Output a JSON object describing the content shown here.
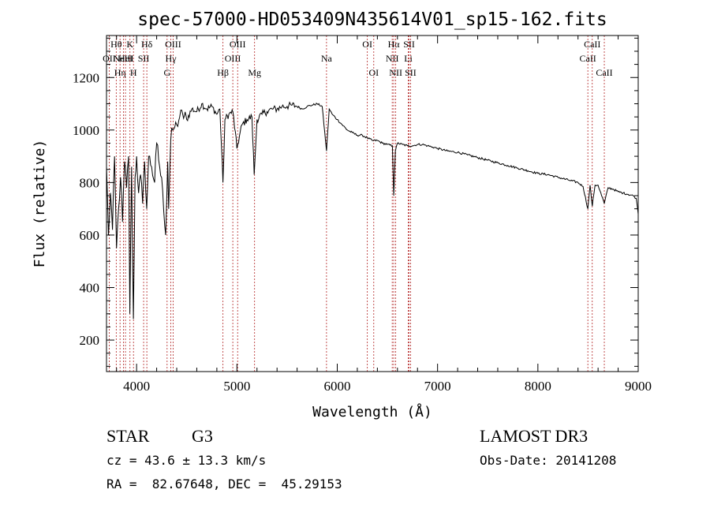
{
  "chart_data": {
    "type": "line",
    "title": "spec-57000-HD053409N435614V01_sp15-162.fits",
    "xlabel": "Wavelength (Å)",
    "ylabel": "Flux (relative)",
    "xlim": [
      3700,
      9000
    ],
    "ylim": [
      80,
      1360
    ],
    "xticks": [
      4000,
      5000,
      6000,
      7000,
      8000,
      9000
    ],
    "yticks": [
      200,
      400,
      600,
      800,
      1000,
      1200
    ],
    "series": [
      {
        "name": "flux",
        "x": [
          3700,
          3720,
          3740,
          3760,
          3780,
          3800,
          3820,
          3840,
          3860,
          3880,
          3900,
          3920,
          3933,
          3950,
          3968,
          3985,
          4000,
          4020,
          4040,
          4060,
          4080,
          4101,
          4120,
          4150,
          4180,
          4200,
          4230,
          4260,
          4290,
          4310,
          4320,
          4340,
          4360,
          4380,
          4400,
          4430,
          4460,
          4500,
          4550,
          4600,
          4650,
          4700,
          4750,
          4800,
          4830,
          4861,
          4880,
          4920,
          4960,
          5000,
          5050,
          5100,
          5150,
          5172,
          5200,
          5250,
          5300,
          5350,
          5400,
          5450,
          5500,
          5550,
          5600,
          5650,
          5700,
          5750,
          5800,
          5850,
          5893,
          5920,
          5950,
          6000,
          6050,
          6100,
          6150,
          6200,
          6250,
          6300,
          6350,
          6400,
          6450,
          6500,
          6550,
          6563,
          6580,
          6600,
          6650,
          6700,
          6750,
          6800,
          6850,
          6900,
          6950,
          7000,
          7100,
          7200,
          7300,
          7400,
          7500,
          7600,
          7700,
          7800,
          7900,
          8000,
          8100,
          8200,
          8300,
          8400,
          8450,
          8498,
          8520,
          8542,
          8570,
          8600,
          8662,
          8700,
          8750,
          8800,
          8850,
          8900,
          8950,
          8980,
          9000
        ],
        "y": [
          860,
          600,
          760,
          620,
          900,
          550,
          700,
          820,
          650,
          880,
          780,
          900,
          300,
          860,
          280,
          820,
          900,
          760,
          830,
          720,
          880,
          700,
          900,
          860,
          800,
          950,
          860,
          770,
          600,
          880,
          700,
          960,
          1000,
          1010,
          1020,
          1050,
          1060,
          1040,
          1080,
          1070,
          1100,
          1080,
          1090,
          1060,
          1080,
          800,
          1040,
          1060,
          1070,
          930,
          1020,
          1040,
          1050,
          830,
          1040,
          1060,
          1070,
          1080,
          1080,
          1090,
          1090,
          1095,
          1090,
          1080,
          1090,
          1095,
          1100,
          1090,
          920,
          1080,
          1060,
          1040,
          1020,
          1000,
          990,
          980,
          980,
          970,
          960,
          960,
          950,
          945,
          940,
          750,
          920,
          950,
          945,
          940,
          940,
          945,
          945,
          940,
          935,
          930,
          920,
          915,
          905,
          895,
          885,
          875,
          865,
          855,
          845,
          835,
          830,
          820,
          810,
          800,
          785,
          700,
          790,
          710,
          790,
          790,
          720,
          780,
          775,
          765,
          760,
          755,
          750,
          740,
          680
        ]
      }
    ],
    "lines": [
      {
        "wl": 3727,
        "label": "OII",
        "row": 1
      },
      {
        "wl": 3797,
        "label": "Hθ",
        "row": 0
      },
      {
        "wl": 3835,
        "label": "Hη",
        "row": 2
      },
      {
        "wl": 3869,
        "label": "NeIII",
        "row": 1
      },
      {
        "wl": 3889,
        "label": "HeI",
        "row": 1
      },
      {
        "wl": 3934,
        "label": "K",
        "row": 0
      },
      {
        "wl": 3969,
        "label": "H",
        "row": 2
      },
      {
        "wl": 4070,
        "label": "SII",
        "row": 1
      },
      {
        "wl": 4102,
        "label": "Hδ",
        "row": 0
      },
      {
        "wl": 4304,
        "label": "G",
        "row": 2
      },
      {
        "wl": 4341,
        "label": "Hγ",
        "row": 1
      },
      {
        "wl": 4364,
        "label": "OIII",
        "row": 0
      },
      {
        "wl": 4861,
        "label": "Hβ",
        "row": 2
      },
      {
        "wl": 4959,
        "label": "OIII",
        "row": 1
      },
      {
        "wl": 5007,
        "label": "OIII",
        "row": 0
      },
      {
        "wl": 5176,
        "label": "Mg",
        "row": 2
      },
      {
        "wl": 5893,
        "label": "Na",
        "row": 1
      },
      {
        "wl": 6300,
        "label": "OI",
        "row": 0
      },
      {
        "wl": 6364,
        "label": "OI",
        "row": 2
      },
      {
        "wl": 6548,
        "label": "NII",
        "row": 1
      },
      {
        "wl": 6563,
        "label": "Hα",
        "row": 0
      },
      {
        "wl": 6583,
        "label": "NII",
        "row": 2
      },
      {
        "wl": 6708,
        "label": "Li",
        "row": 1
      },
      {
        "wl": 6716,
        "label": "SII",
        "row": 0
      },
      {
        "wl": 6731,
        "label": "SII",
        "row": 2
      },
      {
        "wl": 8498,
        "label": "CaII",
        "row": 1
      },
      {
        "wl": 8542,
        "label": "CaII",
        "row": 0
      },
      {
        "wl": 8662,
        "label": "CaII",
        "row": 2
      }
    ]
  },
  "info": {
    "class_label": "STAR",
    "subclass": "G3",
    "survey": "LAMOST DR3",
    "cz": "cz = 43.6 ± 13.3 km/s",
    "obs_date": "Obs-Date: 20141208",
    "radec": "RA =  82.67648, DEC =  45.29153"
  }
}
